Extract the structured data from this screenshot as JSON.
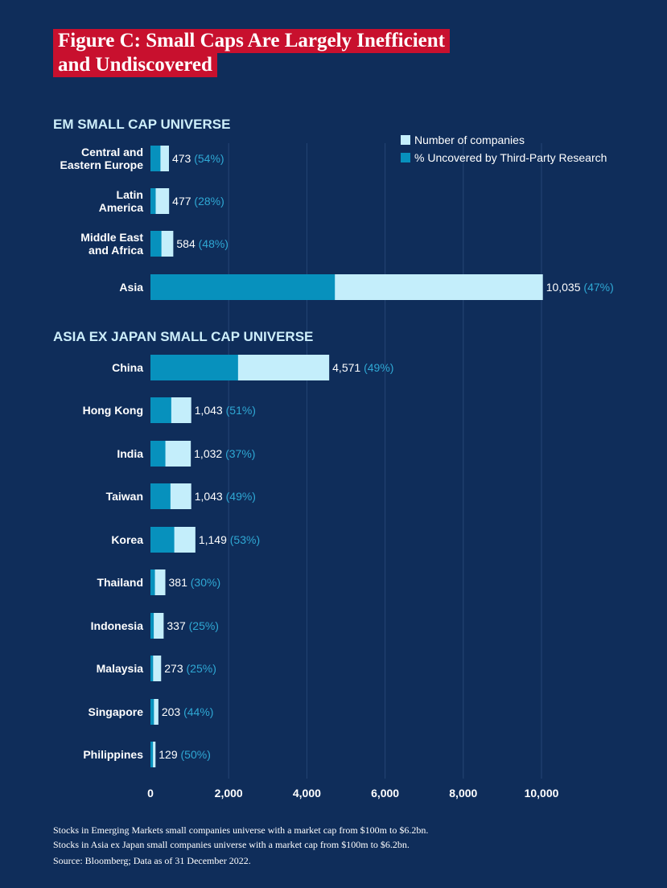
{
  "title_line1": "Figure C: Small Caps Are Largely Inefficient",
  "title_line2": "and Undiscovered",
  "colors": {
    "background": "#0f2d5a",
    "title_bg": "#c8102e",
    "total_bar": "#c4eefb",
    "uncovered_bar": "#0791bd",
    "pct_text": "#2fa8d4",
    "section_title": "#cdeefa"
  },
  "chart_data": {
    "type": "bar",
    "orientation": "horizontal",
    "stacked_overlay": true,
    "xlim": [
      0,
      10000
    ],
    "xticks": [
      0,
      2000,
      4000,
      6000,
      8000,
      10000
    ],
    "xtick_labels": [
      "0",
      "2,000",
      "4,000",
      "6,000",
      "8,000",
      "10,000"
    ],
    "grid": "vertical",
    "legend": {
      "placement": "top-right",
      "entries": [
        {
          "label": "Number of companies",
          "color": "#c4eefb"
        },
        {
          "label": "% Uncovered by Third-Party Research",
          "color": "#0791bd"
        }
      ]
    },
    "sections": [
      {
        "title": "EM SMALL CAP UNIVERSE",
        "rows": [
          {
            "label": [
              "Central and",
              "Eastern Europe"
            ],
            "count": 473,
            "count_label": "473",
            "pct": 54,
            "pct_label": "(54%)"
          },
          {
            "label": [
              "Latin",
              "America"
            ],
            "count": 477,
            "count_label": "477",
            "pct": 28,
            "pct_label": "(28%)"
          },
          {
            "label": [
              "Middle East",
              "and Africa"
            ],
            "count": 584,
            "count_label": "584",
            "pct": 48,
            "pct_label": "(48%)"
          },
          {
            "label": [
              "Asia"
            ],
            "count": 10035,
            "count_label": "10,035",
            "pct": 47,
            "pct_label": "(47%)"
          }
        ]
      },
      {
        "title": "ASIA EX JAPAN SMALL CAP UNIVERSE",
        "rows": [
          {
            "label": [
              "China"
            ],
            "count": 4571,
            "count_label": "4,571",
            "pct": 49,
            "pct_label": "(49%)"
          },
          {
            "label": [
              "Hong Kong"
            ],
            "count": 1043,
            "count_label": "1,043",
            "pct": 51,
            "pct_label": "(51%)"
          },
          {
            "label": [
              "India"
            ],
            "count": 1032,
            "count_label": "1,032",
            "pct": 37,
            "pct_label": "(37%)"
          },
          {
            "label": [
              "Taiwan"
            ],
            "count": 1043,
            "count_label": "1,043",
            "pct": 49,
            "pct_label": "(49%)"
          },
          {
            "label": [
              "Korea"
            ],
            "count": 1149,
            "count_label": "1,149",
            "pct": 53,
            "pct_label": "(53%)"
          },
          {
            "label": [
              "Thailand"
            ],
            "count": 381,
            "count_label": "381",
            "pct": 30,
            "pct_label": "(30%)"
          },
          {
            "label": [
              "Indonesia"
            ],
            "count": 337,
            "count_label": "337",
            "pct": 25,
            "pct_label": "(25%)"
          },
          {
            "label": [
              "Malaysia"
            ],
            "count": 273,
            "count_label": "273",
            "pct": 25,
            "pct_label": "(25%)"
          },
          {
            "label": [
              "Singapore"
            ],
            "count": 203,
            "count_label": "203",
            "pct": 44,
            "pct_label": "(44%)"
          },
          {
            "label": [
              "Philippines"
            ],
            "count": 129,
            "count_label": "129",
            "pct": 50,
            "pct_label": "(50%)"
          }
        ]
      }
    ]
  },
  "footnotes": [
    "Stocks in Emerging Markets small companies universe with a market cap from $100m to $6.2bn.",
    "Stocks in Asia ex Japan small companies universe with a market cap from $100m to $6.2bn.",
    "Source: Bloomberg; Data as of 31 December 2022."
  ]
}
